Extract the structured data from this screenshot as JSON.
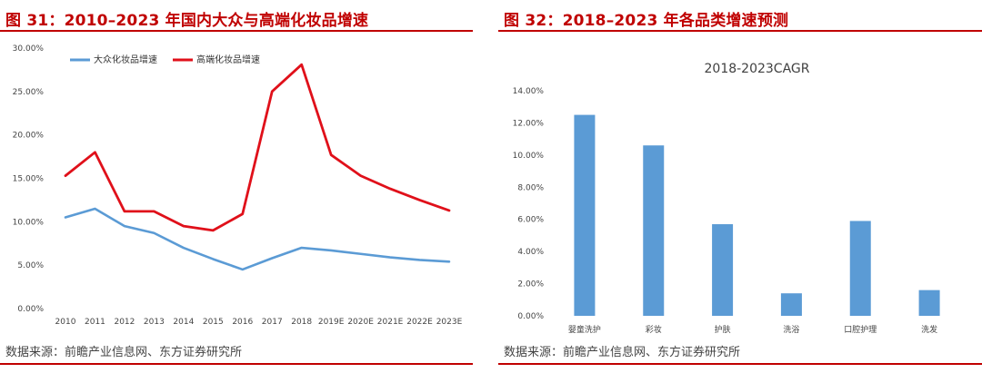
{
  "left": {
    "fig_title": "图 31：2010–2023 年国内大众与高端化妆品增速",
    "source": "数据来源：前瞻产业信息网、东方证券研究所"
  },
  "right": {
    "fig_title": "图 32：2018–2023 年各品类增速预测",
    "source": "数据来源：前瞻产业信息网、东方证券研究所"
  },
  "colors": {
    "mass": "#5b9bd5",
    "premium": "#e0101a",
    "bar": "#5b9bd5",
    "accent": "#c00000"
  },
  "chart_data": [
    {
      "type": "line",
      "title": "",
      "x": [
        "2010",
        "2011",
        "2012",
        "2013",
        "2014",
        "2015",
        "2016",
        "2017",
        "2018",
        "2019E",
        "2020E",
        "2021E",
        "2022E",
        "2023E"
      ],
      "y_ticks": [
        "0.00%",
        "5.00%",
        "10.00%",
        "15.00%",
        "20.00%",
        "25.00%",
        "30.00%"
      ],
      "ylim": [
        0,
        30
      ],
      "grid": false,
      "legend": "top-left",
      "series": [
        {
          "name": "大众化妆品增速",
          "values": [
            10.5,
            11.5,
            9.5,
            8.7,
            7.0,
            5.7,
            4.5,
            5.8,
            7.0,
            6.7,
            6.3,
            5.9,
            5.6,
            5.4
          ]
        },
        {
          "name": "高端化妆品增速",
          "values": [
            15.3,
            18.0,
            11.2,
            11.2,
            9.5,
            9.0,
            10.9,
            25.0,
            28.1,
            17.7,
            15.3,
            13.8,
            12.5,
            11.3
          ]
        }
      ]
    },
    {
      "type": "bar",
      "title": "2018-2023CAGR",
      "categories": [
        "婴童洗护",
        "彩妆",
        "护肤",
        "洗浴",
        "口腔护理",
        "洗发"
      ],
      "values": [
        12.5,
        10.6,
        5.7,
        1.4,
        5.9,
        1.6
      ],
      "y_ticks": [
        "0.00%",
        "2.00%",
        "4.00%",
        "6.00%",
        "8.00%",
        "10.00%",
        "12.00%",
        "14.00%"
      ],
      "ylim": [
        0,
        14
      ],
      "grid": false
    }
  ]
}
